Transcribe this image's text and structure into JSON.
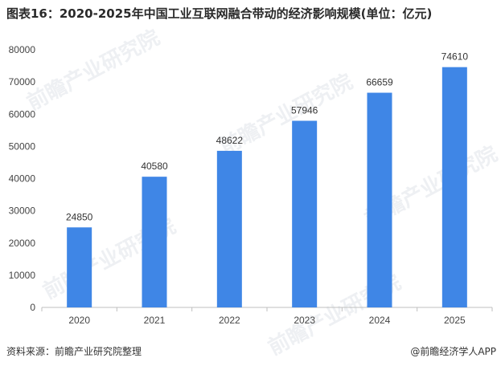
{
  "chart_data": {
    "type": "bar",
    "title": "图表16：2020-2025年中国工业互联网融合带动的经济影响规模(单位：亿元)",
    "categories": [
      "2020",
      "2021",
      "2022",
      "2023",
      "2024",
      "2025"
    ],
    "values": [
      24850,
      40580,
      48622,
      57946,
      66659,
      74610
    ],
    "ylim": [
      0,
      80000
    ],
    "yticks": [
      0,
      10000,
      20000,
      30000,
      40000,
      50000,
      60000,
      70000,
      80000
    ],
    "xlabel": "",
    "ylabel": "",
    "grid": false,
    "bar_color": "#3f86e6"
  },
  "watermark": {
    "text": "前瞻产业研究院",
    "color": "#eef0f3"
  },
  "footer": {
    "source": "资料来源：前瞻产业研究院整理",
    "brand": "@前瞻经济学人APP"
  }
}
